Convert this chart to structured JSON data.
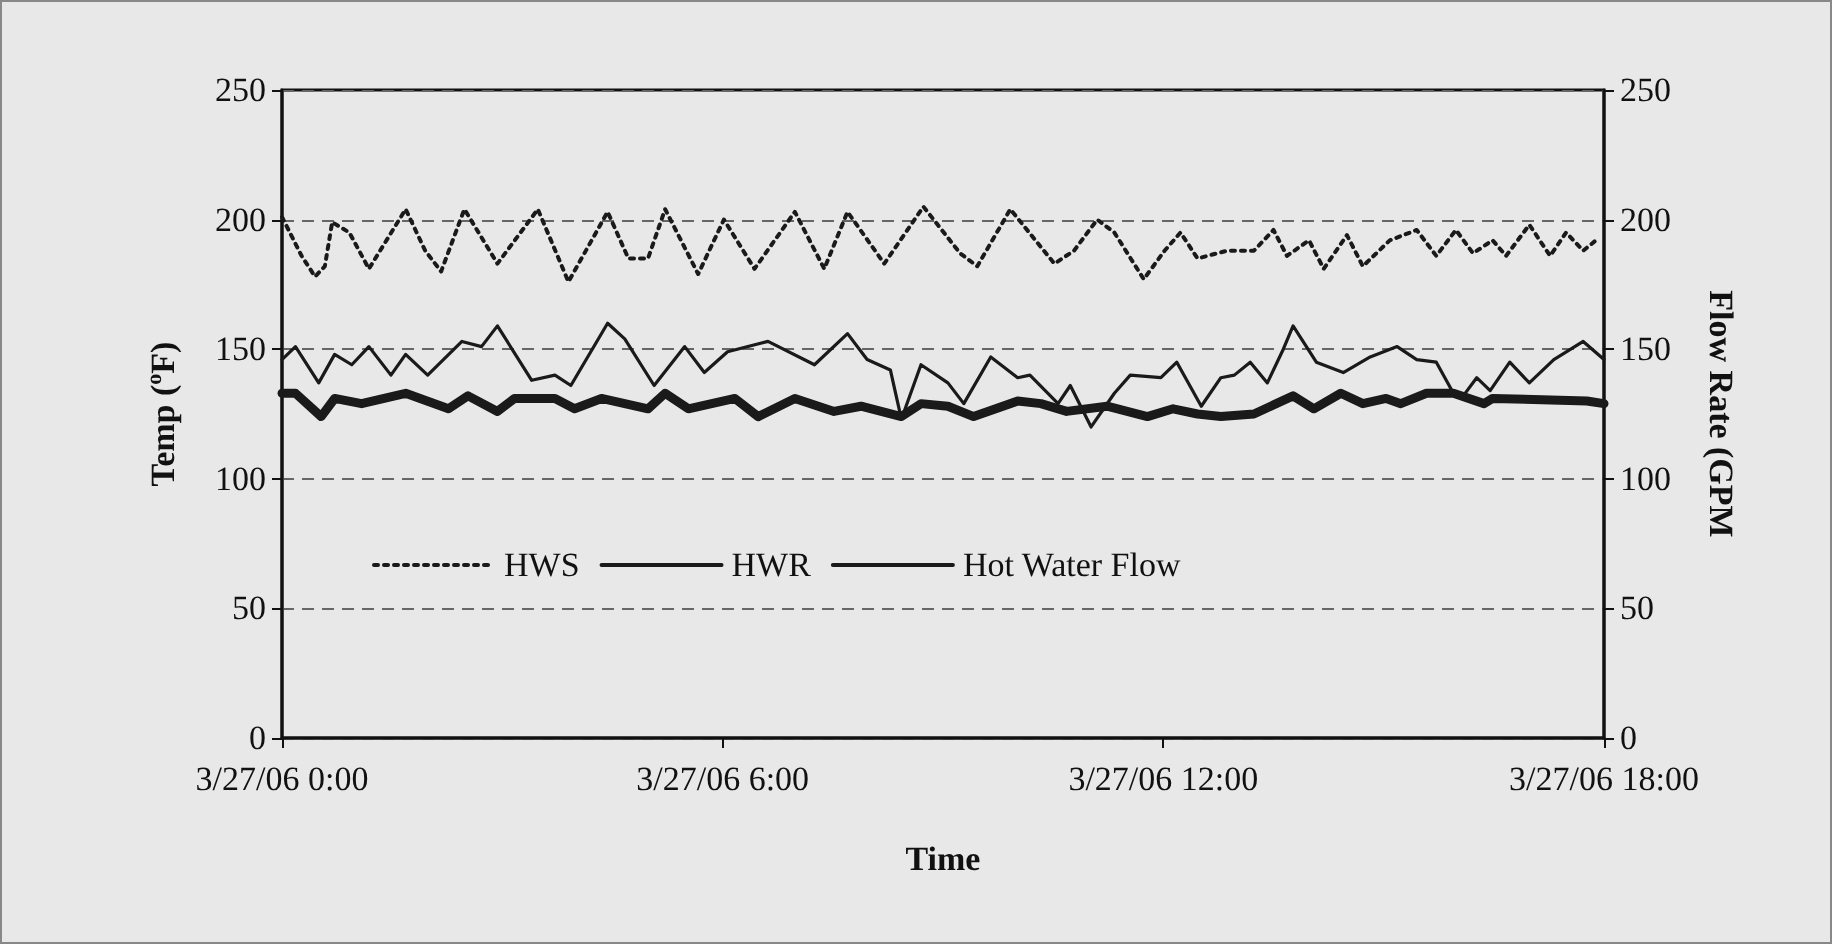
{
  "chart_data": {
    "type": "line",
    "xlabel": "Time",
    "ylabel": "Temp ($^{o}$F)",
    "y2label": "Flow Rate (GPM",
    "xlim": [
      "--03-27T00:00",
      "--03-27T18:00"
    ],
    "xticks": [
      {
        "value": "--03-27T00:00",
        "label": "3/27/06 0:00"
      },
      {
        "value": "--03-27T06:00",
        "label": "3/27/06 6:00"
      },
      {
        "value": "--03-27T12:00",
        "label": "3/27/06 12:00"
      },
      {
        "value": "--03-27T18:00",
        "label": "3/27/06 18:00"
      }
    ],
    "ylim": [
      0,
      250
    ],
    "yticks": [
      0,
      50,
      100,
      150,
      200,
      250
    ],
    "y2lim": [
      0,
      250
    ],
    "y2ticks": [
      0,
      50,
      100,
      150,
      200,
      250
    ],
    "grid": "y",
    "legend": "bottom",
    "marker": "none",
    "series": [
      {
        "name": "HWS",
        "color": "#1a1a1a",
        "line_style": "dotted",
        "x": [
          "--03-27T00:00",
          "--03-27T00:16",
          "--03-27T00:27",
          "--03-27T00:35",
          "--03-27T00:41",
          "--03-27T00:55",
          "--03-27T01:11",
          "--03-27T01:41",
          "--03-27T01:57",
          "--03-27T02:10",
          "--03-27T02:29",
          "--03-27T02:56",
          "--03-27T03:29",
          "--03-27T03:54",
          "--03-27T04:26",
          "--03-27T04:43",
          "--03-27T04:59",
          "--03-27T05:13",
          "--03-27T05:40",
          "--03-27T06:01",
          "--03-27T06:26",
          "--03-27T06:59",
          "--03-27T07:23",
          "--03-27T07:42",
          "--03-27T08:12",
          "--03-27T08:44",
          "--03-27T09:14",
          "--03-27T09:28",
          "--03-27T09:55",
          "--03-27T10:31",
          "--03-27T10:47",
          "--03-27T11:06",
          "--03-27T11:20",
          "--03-27T11:44",
          "--03-27T12:01",
          "--03-27T12:14",
          "--03-27T12:28",
          "--03-27T12:52",
          "--03-27T13:14",
          "--03-27T13:30",
          "--03-27T13:41",
          "--03-27T13:59",
          "--03-27T14:11",
          "--03-27T14:30",
          "--03-27T14:43",
          "--03-27T15:05",
          "--03-27T15:27",
          "--03-27T15:43",
          "--03-27T15:59",
          "--03-27T16:13",
          "--03-27T16:29",
          "--03-27T16:40",
          "--03-27T16:59",
          "--03-27T17:16",
          "--03-27T17:29",
          "--03-27T17:43",
          "--03-27T17:56"
        ],
        "values": [
          201,
          186,
          178,
          182,
          199,
          195,
          181,
          204,
          188,
          180,
          204,
          183,
          204,
          176,
          203,
          185,
          185,
          204,
          179,
          200,
          181,
          203,
          181,
          203,
          183,
          205,
          187,
          182,
          204,
          183,
          188,
          200,
          195,
          177,
          188,
          195,
          185,
          188,
          188,
          196,
          186,
          192,
          181,
          194,
          182,
          192,
          196,
          186,
          196,
          187,
          192,
          186,
          198,
          186,
          195,
          188,
          193
        ]
      },
      {
        "name": "HWR",
        "color": "#1a1a1a",
        "line_style": "solid",
        "x": [
          "--03-27T00:00",
          "--03-27T00:11",
          "--03-27T00:32",
          "--03-27T00:43",
          "--03-27T01:05",
          "--03-27T01:41",
          "--03-27T02:16",
          "--03-27T02:32",
          "--03-27T02:56",
          "--03-27T03:10",
          "--03-27T03:43",
          "--03-27T03:59",
          "--03-27T04:21",
          "--03-27T04:59",
          "--03-27T05:13",
          "--03-27T05:32",
          "--03-27T06:10",
          "--03-27T06:29",
          "--03-27T06:59",
          "--03-27T07:31",
          "--03-27T07:53",
          "--03-27T08:26",
          "--03-27T08:42",
          "--03-27T09:04",
          "--03-27T09:25",
          "--03-27T10:01",
          "--03-27T10:20",
          "--03-27T10:41",
          "--03-27T11:14",
          "--03-27T11:47",
          "--03-27T12:08",
          "--03-27T12:28",
          "--03-27T12:47",
          "--03-27T13:14",
          "--03-27T13:46",
          "--03-27T14:03",
          "--03-27T14:25",
          "--03-27T14:43",
          "--03-27T15:02",
          "--03-27T15:14",
          "--03-27T15:35",
          "--03-27T15:57",
          "--03-27T16:22",
          "--03-27T16:29",
          "--03-27T17:46",
          "--03-27T18:00"
        ],
        "values": [
          133,
          133,
          124,
          131,
          129,
          133,
          127,
          132,
          126,
          131,
          131,
          127,
          131,
          127,
          133,
          127,
          131,
          124,
          131,
          126,
          128,
          124,
          129,
          128,
          124,
          130,
          129,
          126,
          128,
          124,
          127,
          125,
          124,
          125,
          132,
          127,
          133,
          129,
          131,
          129,
          133,
          133,
          129,
          131,
          130,
          129
        ]
      },
      {
        "name": "Hot Water Flow",
        "color": "#1a1a1a",
        "line_style": "solid",
        "axis": "y2",
        "x": [
          "--03-27T00:00",
          "--03-27T00:11",
          "--03-27T00:30",
          "--03-27T00:43",
          "--03-27T00:57",
          "--03-27T01:11",
          "--03-27T01:29",
          "--03-27T01:41",
          "--03-27T01:59",
          "--03-27T02:27",
          "--03-27T02:43",
          "--03-27T02:56",
          "--03-27T03:24",
          "--03-27T03:43",
          "--03-27T03:56",
          "--03-27T04:26",
          "--03-27T04:40",
          "--03-27T05:04",
          "--03-27T05:29",
          "--03-27T05:45",
          "--03-27T06:04",
          "--03-27T06:37",
          "--03-27T07:15",
          "--03-27T07:42",
          "--03-27T07:58",
          "--03-27T08:17",
          "--03-27T08:26",
          "--03-27T08:42",
          "--03-27T09:04",
          "--03-27T09:17",
          "--03-27T09:39",
          "--03-27T10:01",
          "--03-27T10:11",
          "--03-27T10:34",
          "--03-27T10:44",
          "--03-27T11:01",
          "--03-27T11:20",
          "--03-27T11:33",
          "--03-27T11:58",
          "--03-27T12:11",
          "--03-27T12:31",
          "--03-27T12:47",
          "--03-27T12:58",
          "--03-27T13:11",
          "--03-27T13:25",
          "--03-27T13:38",
          "--03-27T13:46",
          "--03-27T14:05",
          "--03-27T14:27",
          "--03-27T14:49",
          "--03-27T15:11",
          "--03-27T15:27",
          "--03-27T15:43",
          "--03-27T15:57",
          "--03-27T16:05",
          "--03-27T16:16",
          "--03-27T16:27",
          "--03-27T16:43",
          "--03-27T16:59",
          "--03-27T17:19",
          "--03-27T17:43",
          "--03-27T18:00"
        ],
        "values": [
          146,
          151,
          137,
          148,
          144,
          151,
          140,
          148,
          140,
          153,
          151,
          159,
          138,
          140,
          136,
          160,
          154,
          136,
          151,
          141,
          149,
          153,
          144,
          156,
          146,
          142,
          123,
          144,
          137,
          129,
          147,
          139,
          140,
          129,
          136,
          120,
          133,
          140,
          139,
          145,
          128,
          139,
          140,
          145,
          137,
          150,
          159,
          145,
          141,
          147,
          151,
          146,
          145,
          133,
          132,
          139,
          134,
          145,
          137,
          146,
          153,
          146
        ]
      }
    ]
  }
}
